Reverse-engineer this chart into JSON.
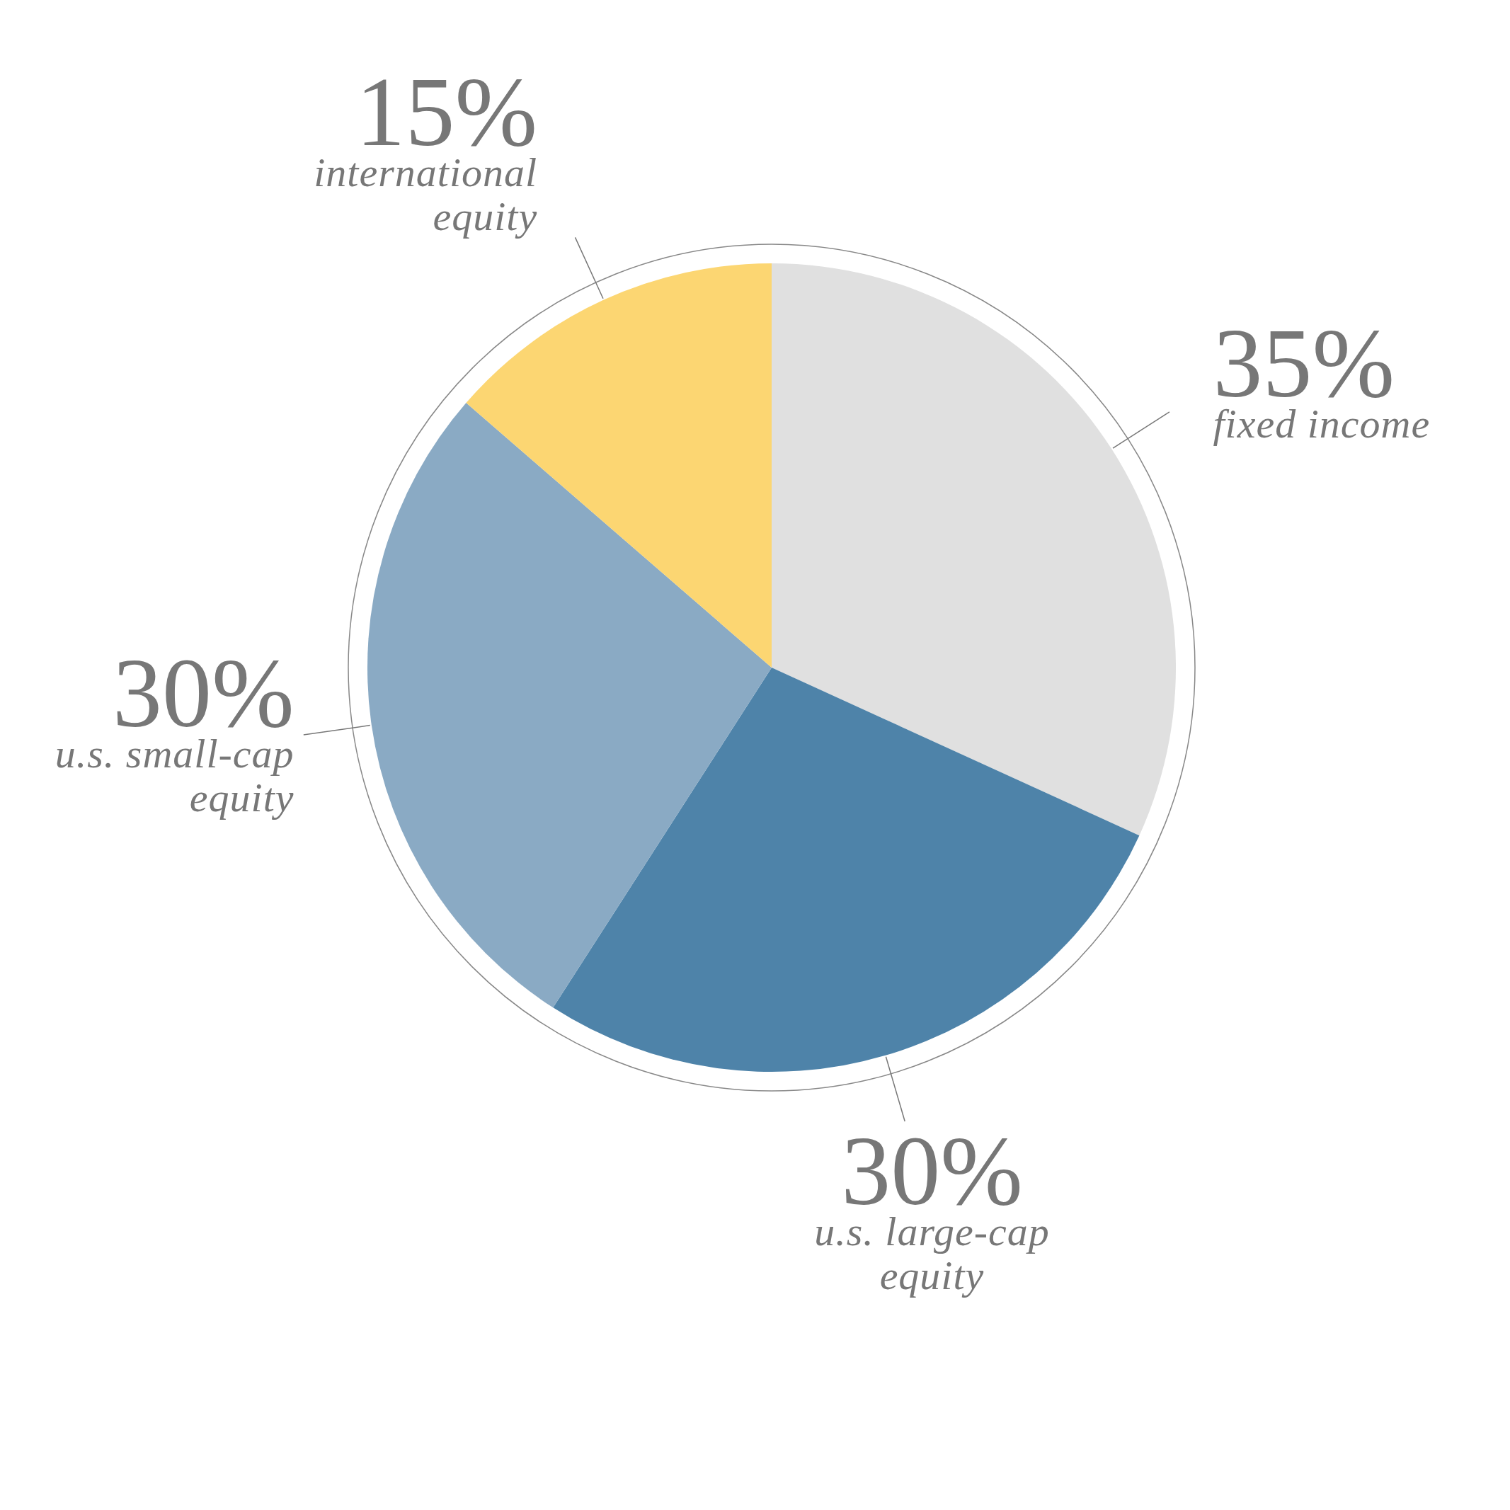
{
  "chart_data": {
    "type": "pie",
    "categories": [
      "fixed income",
      "u.s. large-cap equity",
      "u.s. small-cap equity",
      "international equity"
    ],
    "values": [
      35,
      30,
      30,
      15
    ],
    "colors": [
      "#e0e0e0",
      "#4e83a9",
      "#8aaac4",
      "#fcd672"
    ],
    "value_labels": [
      "35%",
      "30%",
      "30%",
      "15%"
    ]
  }
}
